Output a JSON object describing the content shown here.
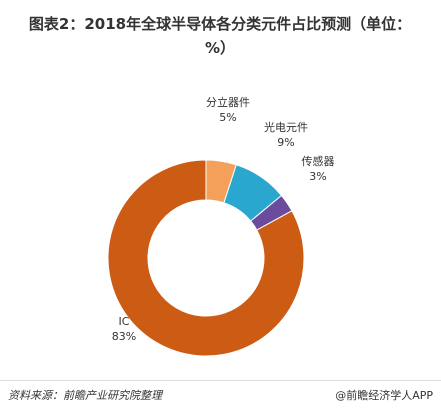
{
  "chart_data": {
    "type": "donut",
    "title": "图表2：2018年全球半导体各分类元件占比预测（单位：%）",
    "categories": [
      "分立器件",
      "光电元件",
      "传感器",
      "IC"
    ],
    "values": [
      5,
      9,
      3,
      83
    ],
    "value_labels": [
      "5%",
      "9%",
      "3%",
      "83%"
    ],
    "colors": [
      "#f5a05a",
      "#2aa7cf",
      "#6a4b9e",
      "#cc5c14"
    ]
  },
  "footer": {
    "source": "资料来源：前瞻产业研究院整理",
    "credit": "@前瞻经济学人APP"
  }
}
